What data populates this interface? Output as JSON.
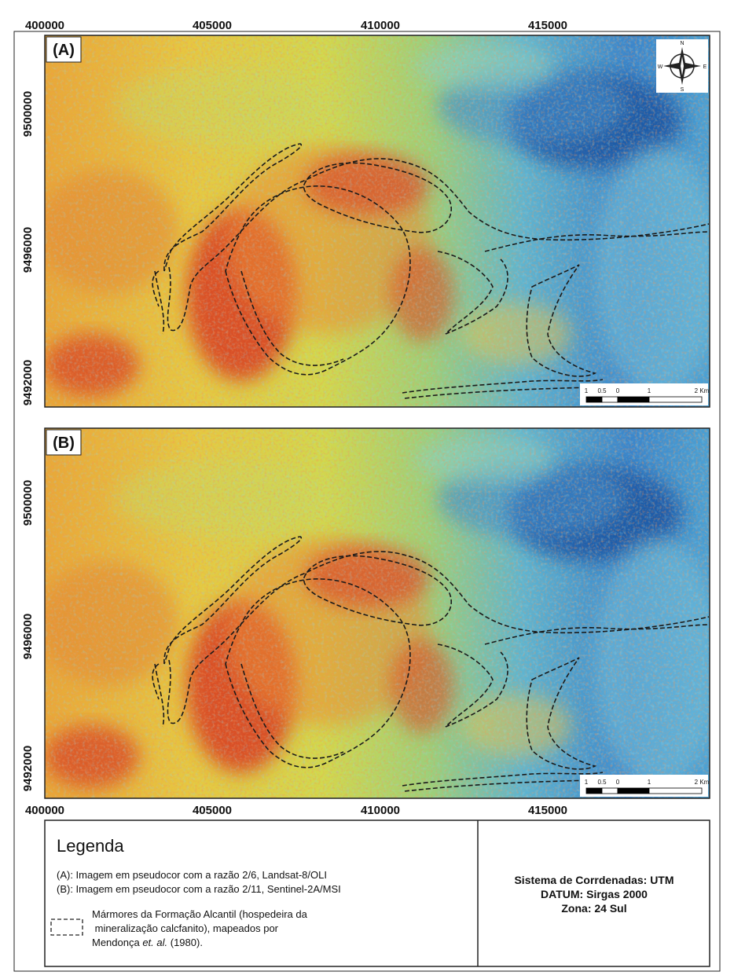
{
  "x_labels_top": [
    "400000",
    "405000",
    "410000",
    "415000"
  ],
  "x_labels_bottom": [
    "400000",
    "405000",
    "410000",
    "415000"
  ],
  "panels": [
    {
      "label": "(A)",
      "y_labels": [
        "9500000",
        "9496000",
        "9492000"
      ],
      "scale": [
        "1",
        "0.5",
        "0",
        "1",
        "2 Km"
      ]
    },
    {
      "label": "(B)",
      "y_labels": [
        "9500000",
        "9496000",
        "9492000"
      ],
      "scale": [
        "1",
        "0.5",
        "0",
        "1",
        "2 Km"
      ]
    }
  ],
  "compass": [
    "N",
    "E",
    "S",
    "W"
  ],
  "legend": {
    "title": "Legenda",
    "items": [
      "(A): Imagem em pseudocor com a razão 2/6,  Landsat-8/OLI",
      "(B): Imagem em pseudocor com a razão 2/11, Sentinel-2A/MSI"
    ],
    "outline_lines": [
      "Mármores da Formação Alcantil (hospedeira da",
      " mineralização calcfanito), mapeados por"
    ],
    "outline_last": [
      "Mendonça ",
      "et. al.",
      " (1980)."
    ]
  },
  "crs": [
    "Sistema de Corrdenadas: UTM",
    "DATUM: Sirgas 2000",
    "Zona: 24 Sul"
  ]
}
